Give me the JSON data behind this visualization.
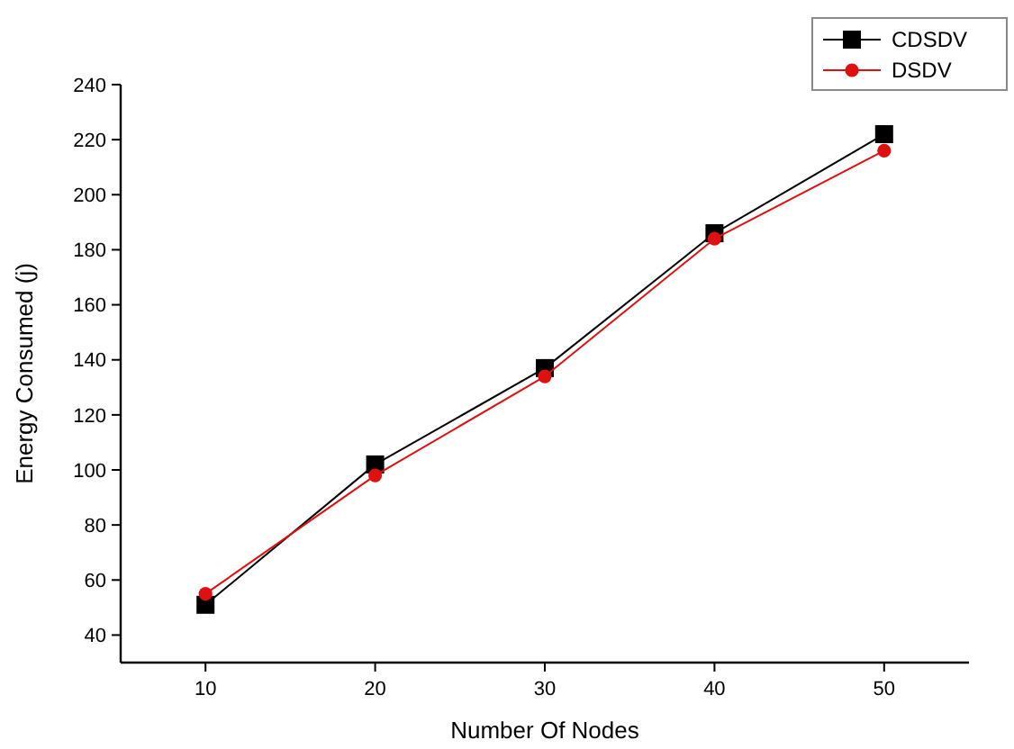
{
  "chart_data": {
    "type": "line",
    "xlabel": "Number Of Nodes",
    "ylabel": "Energy Consumed (j)",
    "x": [
      10,
      20,
      30,
      40,
      50
    ],
    "series": [
      {
        "name": "CDSDV",
        "color": "#000000",
        "marker": "square",
        "values": [
          51,
          102,
          137,
          186,
          222
        ]
      },
      {
        "name": "DSDV",
        "color": "#e01010",
        "marker": "circle",
        "values": [
          55,
          98,
          134,
          184,
          216
        ]
      }
    ],
    "xlim": [
      5,
      55
    ],
    "xticks": [
      10,
      20,
      30,
      40,
      50
    ],
    "ylim": [
      30,
      240
    ],
    "yticks": [
      40,
      60,
      80,
      100,
      120,
      140,
      160,
      180,
      200,
      220,
      240
    ],
    "grid": false,
    "legend": "top right",
    "line_style": "solid"
  }
}
